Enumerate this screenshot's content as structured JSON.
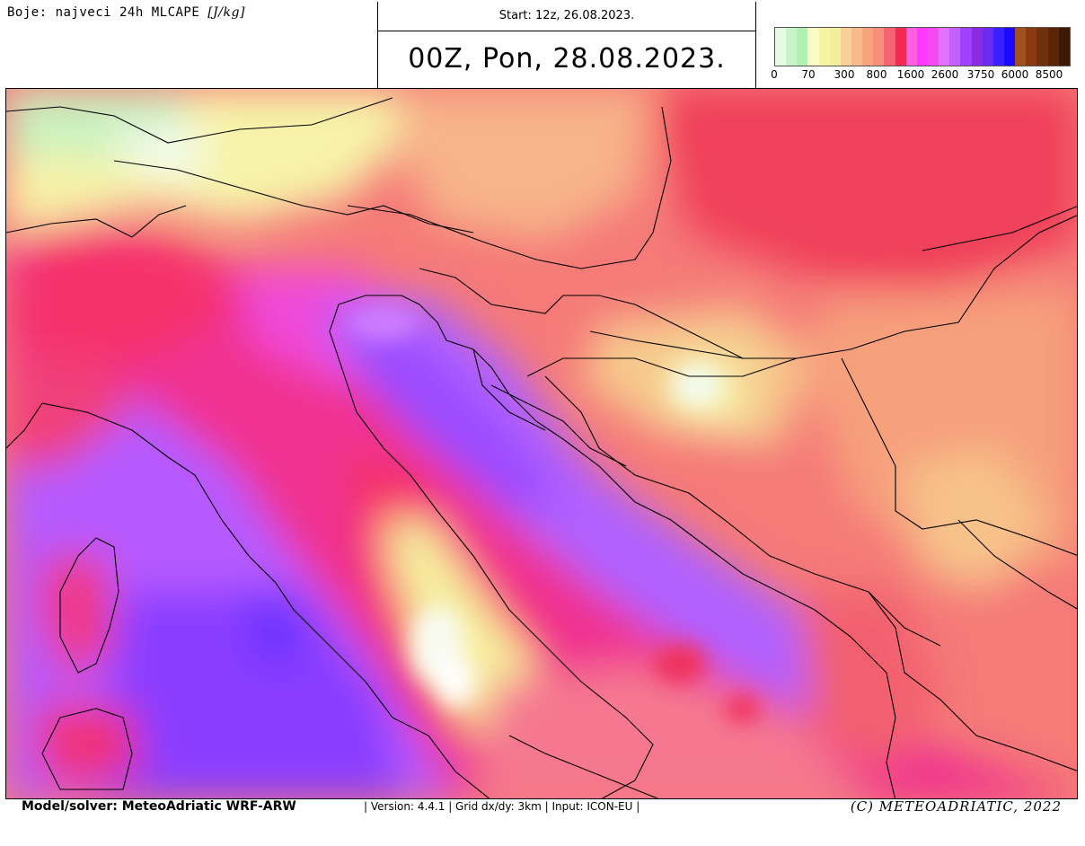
{
  "header": {
    "title_prefix": "Boje: najveci 24h MLCAPE ",
    "title_unit": "[J/kg]",
    "start": "Start: 12z, 26.08.2023.",
    "valid": "00Z, Pon, 28.08.2023."
  },
  "legend": {
    "labels": [
      "0",
      "70",
      "300",
      "800",
      "1600",
      "2600",
      "3750",
      "6000",
      "8500"
    ],
    "colors": [
      "#e6fbe6",
      "#c8f5c8",
      "#b2f0b2",
      "#fbfbc8",
      "#f5f5a0",
      "#f0f09a",
      "#f8d09a",
      "#f7b98a",
      "#f6a47e",
      "#f78f7a",
      "#f56370",
      "#f02a55",
      "#ff5fe0",
      "#ff38ff",
      "#f04cf0",
      "#e070ff",
      "#c060ff",
      "#a040ff",
      "#8a2be2",
      "#6a2af0",
      "#3a20ff",
      "#1a0aff",
      "#a0501a",
      "#8a3a10",
      "#70300c",
      "#5a2608",
      "#3a1a06"
    ]
  },
  "footer": {
    "model": "Model/solver: MeteoAdriatic WRF-ARW",
    "meta": "| Version: 4.4.1 | Grid dx/dy: 3km | Input: ICON-EU |",
    "copyright": "(C) METEOADRIATIC, 2022"
  }
}
